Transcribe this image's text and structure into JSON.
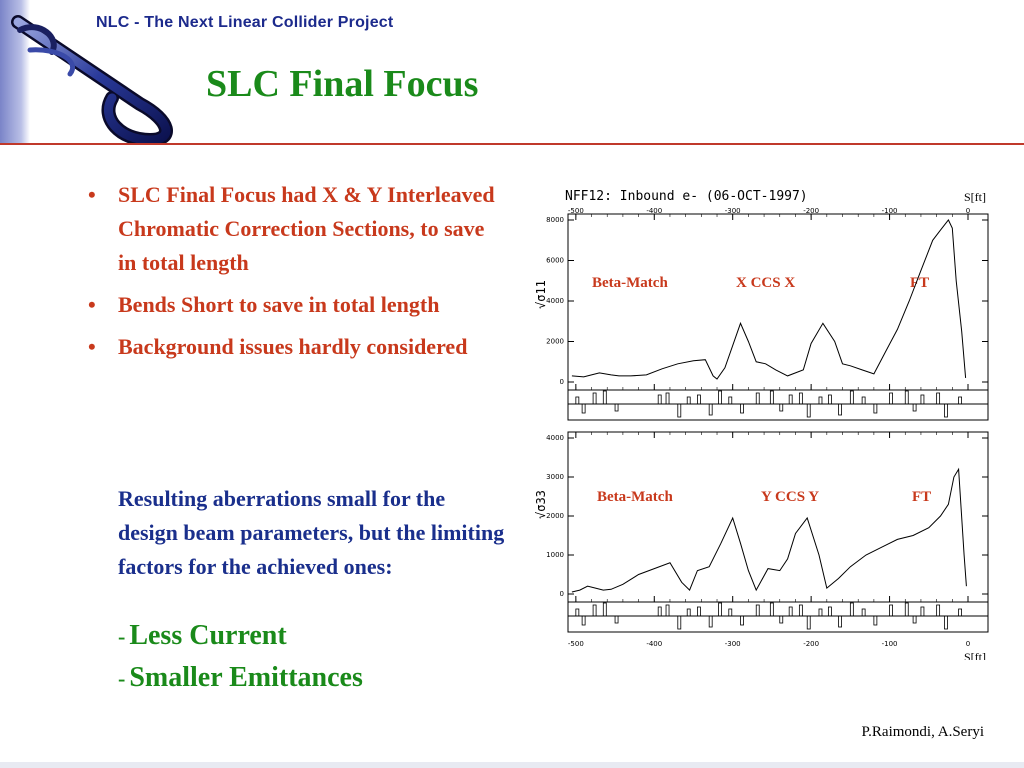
{
  "header": {
    "project": "NLC - The Next Linear Collider Project",
    "title": "SLC Final Focus"
  },
  "bullets": [
    "SLC Final Focus had X & Y Interleaved Chromatic Correction Sections, to save in total length",
    "Bends Short to save in total length",
    "Background issues hardly considered"
  ],
  "paragraph": "Resulting aberrations small for the design beam parameters, but the limiting factors for the achieved ones:",
  "factors": [
    {
      "dash": "-",
      "text": "Less Current"
    },
    {
      "dash": "-",
      "text": "Smaller Emittances"
    }
  ],
  "footer": "P.Raimondi, A.Seryi",
  "colors": {
    "title": "#1a8a1a",
    "header": "#1c2a8c",
    "bullet": "#c8391c",
    "paragraph": "#1a2f8c"
  },
  "figure": {
    "caption": "NFF12: Inbound e- (06-OCT-1997)",
    "s_unit_top": "S[ft]",
    "s_unit_bottom": "S[ft]",
    "x_ticks": [
      "-500",
      "-400",
      "-300",
      "-200",
      "-100",
      "0"
    ],
    "top_panel": {
      "ylabel": "√σ11",
      "y_ticks": [
        "0",
        "2000",
        "4000",
        "6000",
        "8000"
      ],
      "labels": [
        "Beta-Match",
        "X  CCS  X",
        "FT"
      ]
    },
    "bottom_panel": {
      "ylabel": "√σ33",
      "y_ticks": [
        "0",
        "1000",
        "2000",
        "3000",
        "4000"
      ],
      "labels": [
        "Beta-Match",
        "Y  CCS  Y",
        "FT"
      ]
    }
  },
  "chart_data": [
    {
      "type": "line",
      "title": "NFF12: Inbound e- (06-OCT-1997)",
      "xlabel": "S[ft]",
      "ylabel": "√σ11",
      "xlim": [
        -510,
        0
      ],
      "ylim": [
        0,
        8000
      ],
      "x": [
        -505,
        -490,
        -480,
        -470,
        -455,
        -445,
        -430,
        -410,
        -390,
        -370,
        -350,
        -335,
        -325,
        -320,
        -310,
        -300,
        -290,
        -280,
        -270,
        -258,
        -245,
        -230,
        -210,
        -200,
        -185,
        -170,
        -160,
        -150,
        -135,
        -120,
        -105,
        -90,
        -75,
        -60,
        -45,
        -35,
        -25,
        -20,
        -15,
        -8,
        -3
      ],
      "values": [
        300,
        250,
        350,
        450,
        350,
        300,
        300,
        350,
        650,
        900,
        1050,
        1100,
        300,
        150,
        700,
        1800,
        2900,
        2000,
        1000,
        900,
        600,
        300,
        600,
        1900,
        2900,
        2000,
        900,
        800,
        600,
        400,
        1500,
        2600,
        4000,
        5500,
        7000,
        7500,
        8000,
        7600,
        5000,
        2500,
        200
      ]
    },
    {
      "type": "line",
      "xlabel": "S[ft]",
      "ylabel": "√σ33",
      "xlim": [
        -510,
        0
      ],
      "ylim": [
        0,
        4000
      ],
      "x": [
        -505,
        -495,
        -485,
        -475,
        -465,
        -455,
        -440,
        -420,
        -400,
        -380,
        -365,
        -355,
        -345,
        -330,
        -315,
        -300,
        -290,
        -280,
        -270,
        -255,
        -240,
        -230,
        -220,
        -205,
        -190,
        -180,
        -165,
        -150,
        -130,
        -110,
        -90,
        -70,
        -50,
        -35,
        -25,
        -18,
        -12,
        -5,
        -2
      ],
      "values": [
        50,
        100,
        200,
        150,
        100,
        120,
        250,
        500,
        650,
        800,
        300,
        100,
        600,
        700,
        1300,
        1950,
        1300,
        600,
        100,
        650,
        600,
        900,
        1550,
        1950,
        1000,
        150,
        400,
        700,
        1000,
        1200,
        1400,
        1500,
        1700,
        2000,
        2300,
        3000,
        3200,
        1000,
        200
      ]
    }
  ]
}
